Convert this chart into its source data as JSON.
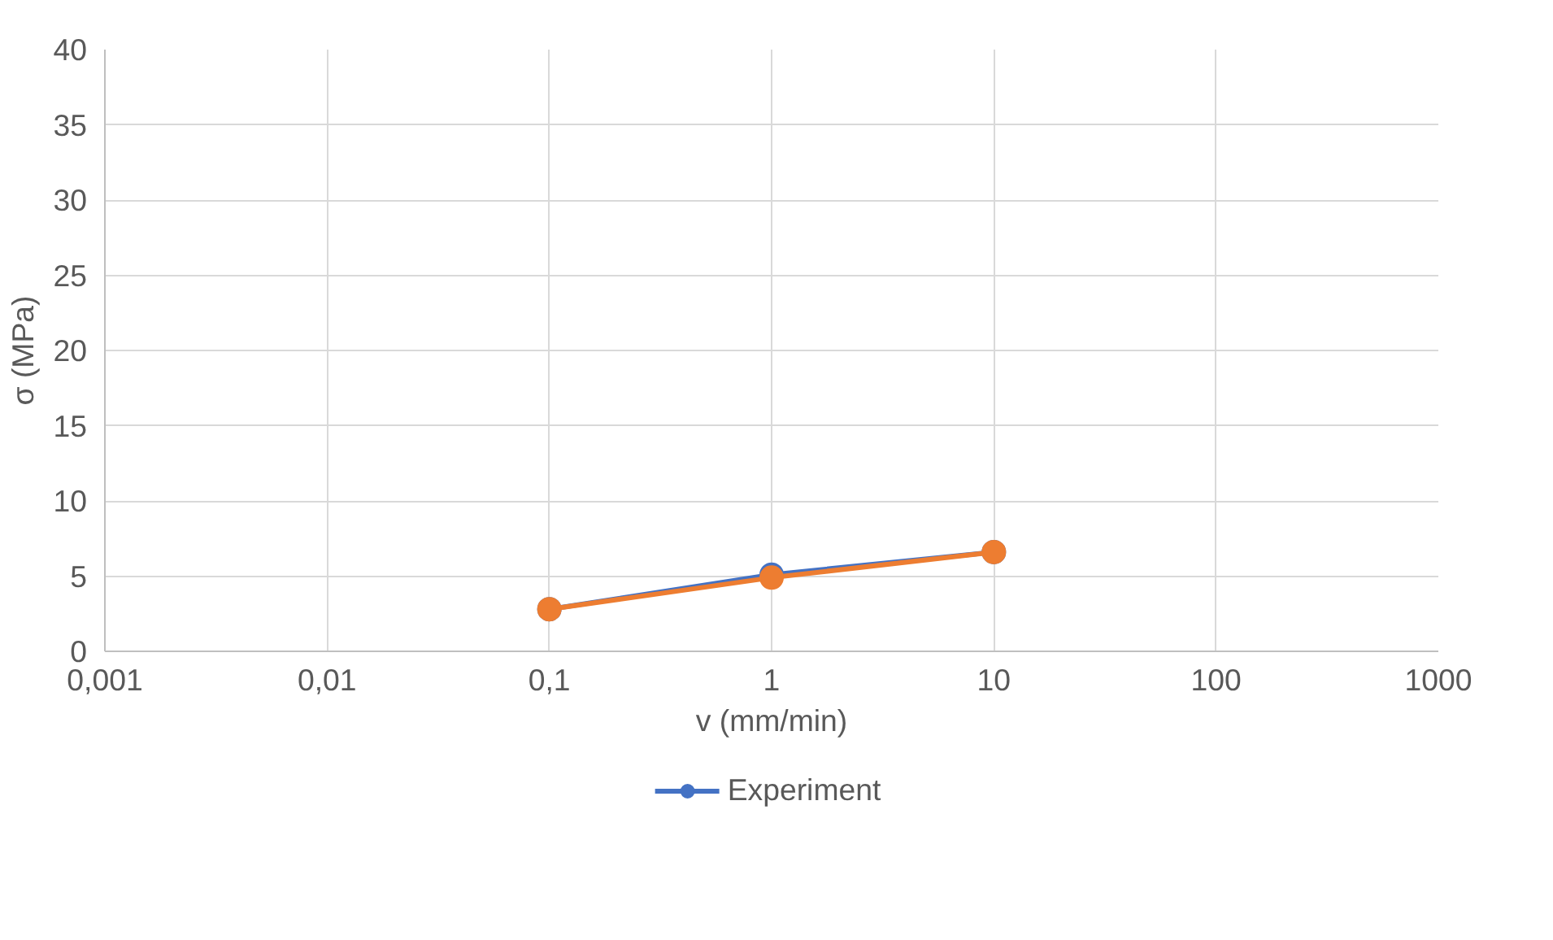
{
  "chart_data": {
    "type": "line",
    "xlabel": "v (mm/min)",
    "ylabel": "σ (MPa)",
    "x": [
      0.1,
      1,
      10
    ],
    "series": [
      {
        "name": "Experiment",
        "color": "#4472c4",
        "values": [
          2.8,
          5.1,
          6.6
        ]
      },
      {
        "color": "#ed7d31",
        "values": [
          2.8,
          4.9,
          6.6
        ]
      }
    ],
    "log": "x",
    "xlim": [
      0.001,
      1000
    ],
    "xticks": [
      {
        "value": 0.001,
        "label": "0,001"
      },
      {
        "value": 0.01,
        "label": "0,01"
      },
      {
        "value": 0.1,
        "label": "0,1"
      },
      {
        "value": 1,
        "label": "1"
      },
      {
        "value": 10,
        "label": "10"
      },
      {
        "value": 100,
        "label": "100"
      },
      {
        "value": 1000,
        "label": "1000"
      }
    ],
    "ylim": [
      0,
      40
    ],
    "yticks": [
      0,
      5,
      10,
      15,
      20,
      25,
      30,
      35,
      40
    ],
    "grid": true,
    "legend": "bottom",
    "marker": "circle",
    "line_style": "solid"
  }
}
